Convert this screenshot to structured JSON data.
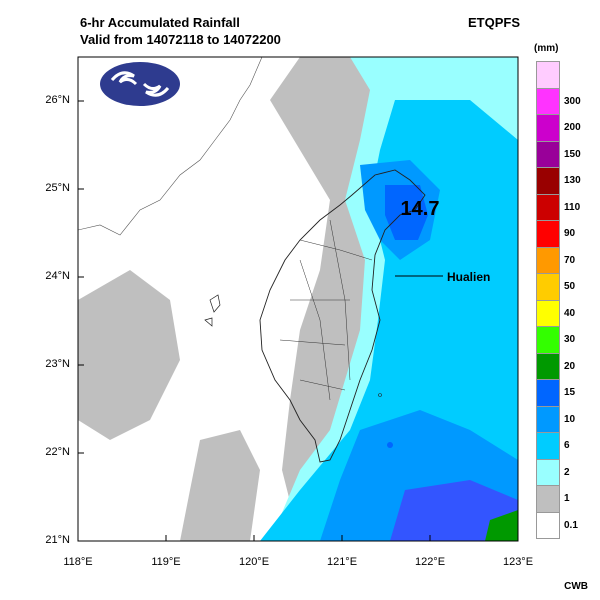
{
  "header": {
    "title_line1": "6-hr Accumulated Rainfall",
    "title_line2": "Valid from 14072118 to 14072200",
    "product": "ETQPFS"
  },
  "map": {
    "lat_labels": [
      "26°N",
      "25°N",
      "24°N",
      "23°N",
      "22°N",
      "21°N"
    ],
    "lon_labels": [
      "118°E",
      "119°E",
      "120°E",
      "121°E",
      "122°E",
      "123°E"
    ],
    "lat_range": [
      21,
      26.5
    ],
    "lon_range": [
      118,
      123
    ],
    "max_value": "14.7",
    "station_label": "Hualien",
    "logo_icon": "cwb-logo-icon"
  },
  "legend": {
    "unit": "(mm)",
    "levels": [
      {
        "label": "",
        "color": "#ffccff"
      },
      {
        "label": "300",
        "color": "#ff33ff"
      },
      {
        "label": "200",
        "color": "#cc00cc"
      },
      {
        "label": "150",
        "color": "#990099"
      },
      {
        "label": "130",
        "color": "#990000"
      },
      {
        "label": "110",
        "color": "#cc0000"
      },
      {
        "label": "90",
        "color": "#ff0000"
      },
      {
        "label": "70",
        "color": "#ff9900"
      },
      {
        "label": "50",
        "color": "#ffcc00"
      },
      {
        "label": "40",
        "color": "#ffff00"
      },
      {
        "label": "30",
        "color": "#33ff00"
      },
      {
        "label": "20",
        "color": "#009900"
      },
      {
        "label": "15",
        "color": "#0066ff"
      },
      {
        "label": "10",
        "color": "#0099ff"
      },
      {
        "label": "6",
        "color": "#00ccff"
      },
      {
        "label": "2",
        "color": "#99ffff"
      },
      {
        "label": "1",
        "color": "#bfbfbf"
      },
      {
        "label": "0.1",
        "color": "#ffffff"
      }
    ]
  },
  "footer": {
    "credit": "CWB"
  }
}
